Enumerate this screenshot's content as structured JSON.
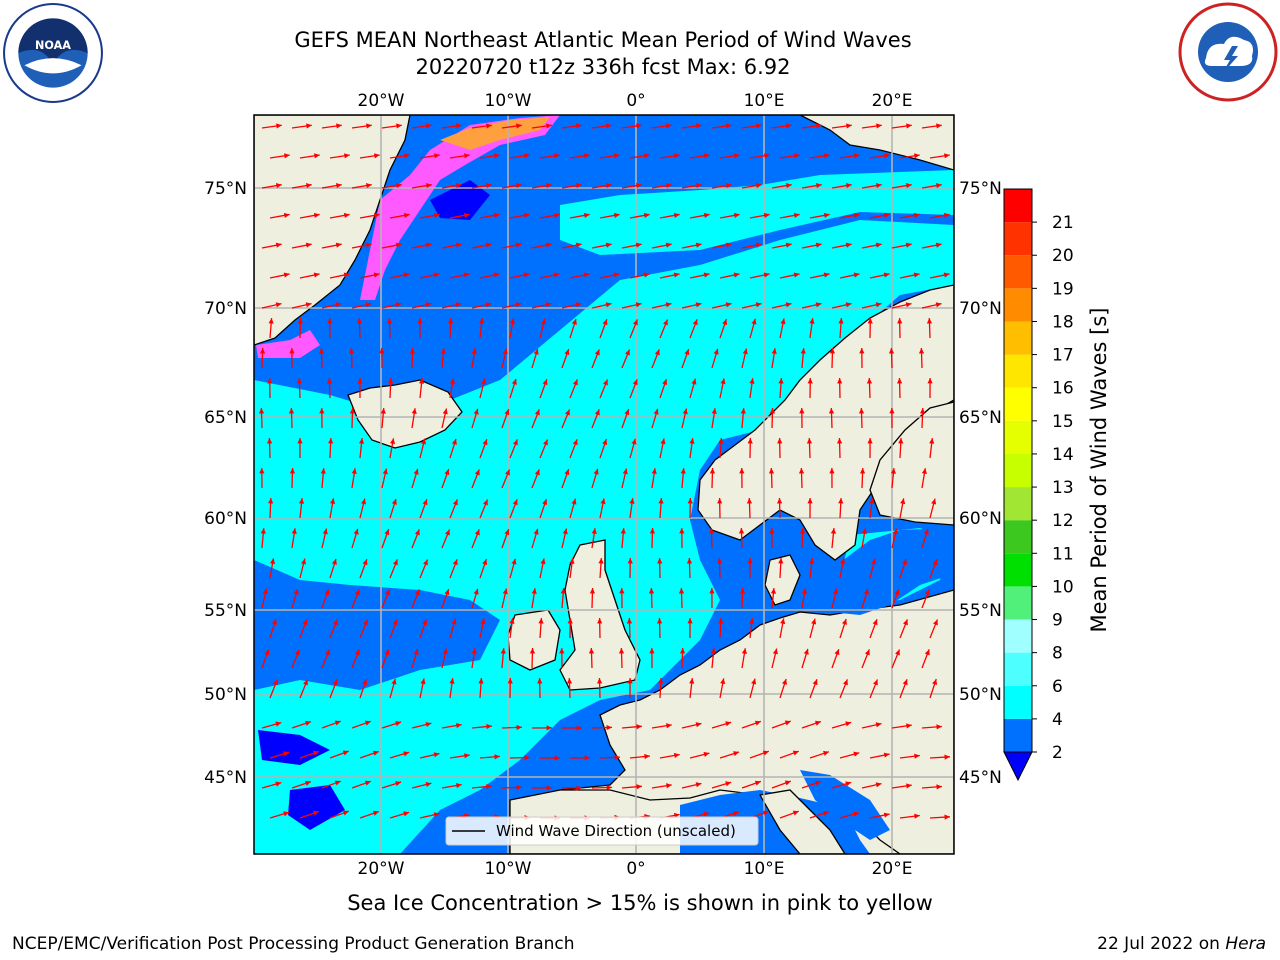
{
  "title": {
    "line1": "GEFS MEAN Northeast Atlantic Mean Period of Wind Waves",
    "line2": "20220720 t12z 336h fcst   Max: 6.92"
  },
  "map": {
    "lon_ticks_top": [
      "20°W",
      "10°W",
      "0°",
      "10°E",
      "20°E"
    ],
    "lon_ticks_bottom": [
      "20°W",
      "10°W",
      "0°",
      "10°E",
      "20°E"
    ],
    "lat_ticks_left": [
      "75°N",
      "70°N",
      "65°N",
      "60°N",
      "55°N",
      "50°N",
      "45°N"
    ],
    "lat_ticks_right": [
      "75°N",
      "70°N",
      "65°N",
      "60°N",
      "55°N",
      "50°N",
      "45°N"
    ],
    "legend_label": "Wind Wave Direction (unscaled)",
    "colors": {
      "land": "#efefdf",
      "coast": "#000000",
      "arrows": "#ff0000",
      "grid": "#b4b4b4",
      "band_2_4": "#0070ff",
      "band_4_6": "#00ffff",
      "band_lt_2": "#0000ff",
      "ice": "#ff5aff"
    }
  },
  "colorbar": {
    "label": "Mean Period of Wind Waves [s]",
    "ticks": [
      "2",
      "4",
      "6",
      "8",
      "9",
      "10",
      "11",
      "12",
      "13",
      "14",
      "15",
      "16",
      "17",
      "18",
      "19",
      "20",
      "21"
    ],
    "colors": [
      "#0070ff",
      "#00ffff",
      "#4dffff",
      "#a0ffff",
      "#50f07a",
      "#00e000",
      "#3cc81e",
      "#a0e632",
      "#c8ff00",
      "#e6ff00",
      "#ffff00",
      "#ffe600",
      "#ffbe00",
      "#ff8c00",
      "#ff5a00",
      "#ff3200",
      "#ff0000"
    ],
    "extend_color": "#0000ff"
  },
  "footer": {
    "note": "Sea Ice Concentration > 15% is shown in pink to yellow",
    "credit_left": "NCEP/EMC/Verification Post Processing Product Generation Branch",
    "credit_right_prefix": "22 Jul 2022 on ",
    "credit_right_host": "Hera"
  }
}
